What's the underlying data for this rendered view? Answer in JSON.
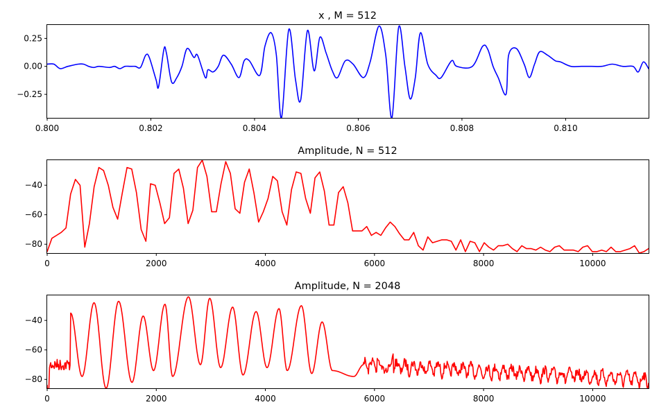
{
  "figure": {
    "background": "#ffffff"
  },
  "chart_data": [
    {
      "type": "line",
      "title": "x , M = 512",
      "xlabel": "",
      "ylabel": "",
      "xlim": [
        0.8,
        0.8116
      ],
      "ylim": [
        -0.46,
        0.37
      ],
      "xticks": [
        0.8,
        0.802,
        0.804,
        0.806,
        0.808,
        0.81
      ],
      "xtick_labels": [
        "0.800",
        "0.802",
        "0.804",
        "0.806",
        "0.808",
        "0.810"
      ],
      "yticks": [
        0.25,
        0.0,
        -0.25
      ],
      "ytick_labels": [
        "0.25",
        "0.00",
        "−0.25"
      ],
      "grid": false,
      "series": [
        {
          "name": "x",
          "color": "#0000ff",
          "x": [
            0.8,
            0.80013,
            0.80025,
            0.8004,
            0.8006,
            0.8007,
            0.8008,
            0.8009,
            0.801,
            0.8012,
            0.8013,
            0.8014,
            0.8015,
            0.8016,
            0.8017,
            0.8018,
            0.8019,
            0.80197,
            0.8021,
            0.80215,
            0.80225,
            0.8023,
            0.8024,
            0.8025,
            0.8026,
            0.8027,
            0.80283,
            0.8029,
            0.80305,
            0.8031,
            0.8032,
            0.8033,
            0.8034,
            0.80355,
            0.8037,
            0.8038,
            0.8039,
            0.8041,
            0.8042,
            0.80432,
            0.80442,
            0.80452,
            0.80466,
            0.80479,
            0.80489,
            0.80502,
            0.80515,
            0.80526,
            0.80538,
            0.8055,
            0.8056,
            0.80575,
            0.8059,
            0.8061,
            0.80623,
            0.8064,
            0.80653,
            0.80665,
            0.80678,
            0.8069,
            0.807,
            0.8071,
            0.8072,
            0.80734,
            0.8075,
            0.8076,
            0.8078,
            0.8079,
            0.8082,
            0.8084,
            0.8085,
            0.8086,
            0.8087,
            0.80885,
            0.8089,
            0.80905,
            0.8092,
            0.8093,
            0.8094,
            0.8095,
            0.80965,
            0.8098,
            0.8099,
            0.8101,
            0.8103,
            0.8105,
            0.8107,
            0.8109,
            0.8111,
            0.8113,
            0.8114,
            0.8115,
            0.8116
          ],
          "y": [
            0.02,
            0.02,
            -0.02,
            0.0,
            0.02,
            0.02,
            0.0,
            -0.01,
            0.0,
            -0.01,
            0.0,
            -0.02,
            0.0,
            0.0,
            0.0,
            -0.01,
            0.1,
            0.08,
            -0.12,
            -0.18,
            0.15,
            0.12,
            -0.14,
            -0.1,
            0.0,
            0.16,
            0.08,
            0.1,
            -0.1,
            -0.03,
            -0.05,
            0.0,
            0.1,
            0.02,
            -0.1,
            0.05,
            0.05,
            -0.08,
            0.18,
            0.3,
            0.1,
            -0.46,
            0.33,
            -0.12,
            -0.3,
            0.32,
            -0.04,
            0.26,
            0.12,
            -0.04,
            -0.1,
            0.05,
            0.02,
            -0.1,
            0.04,
            0.36,
            0.1,
            -0.46,
            0.35,
            0.0,
            -0.29,
            -0.1,
            0.3,
            0.02,
            -0.08,
            -0.1,
            0.05,
            0.0,
            0.0,
            0.18,
            0.15,
            0.0,
            -0.1,
            -0.25,
            0.1,
            0.16,
            0.02,
            -0.1,
            0.02,
            0.13,
            0.1,
            0.05,
            0.04,
            0.0,
            0.0,
            0.0,
            0.0,
            0.02,
            0.0,
            0.0,
            -0.05,
            0.04,
            -0.02
          ]
        }
      ]
    },
    {
      "type": "line",
      "title": "Amplitude, N = 512",
      "xlabel": "",
      "ylabel": "",
      "xlim": [
        0,
        11025
      ],
      "ylim": [
        -86,
        -23
      ],
      "xticks": [
        0,
        2000,
        4000,
        6000,
        8000,
        10000
      ],
      "xtick_labels": [
        "0",
        "2000",
        "4000",
        "6000",
        "8000",
        "10000"
      ],
      "yticks": [
        -40,
        -60,
        -80
      ],
      "ytick_labels": [
        "−40",
        "−60",
        "−80"
      ],
      "grid": false,
      "series": [
        {
          "name": "amplitude",
          "color": "#ff0000",
          "x": [
            0,
            86,
            172,
            258,
            344,
            430,
            517,
            603,
            689,
            775,
            861,
            947,
            1034,
            1120,
            1206,
            1292,
            1378,
            1464,
            1550,
            1637,
            1723,
            1809,
            1895,
            1981,
            2067,
            2153,
            2240,
            2326,
            2412,
            2498,
            2584,
            2670,
            2756,
            2843,
            2929,
            3015,
            3101,
            3187,
            3273,
            3359,
            3446,
            3532,
            3618,
            3704,
            3790,
            3876,
            3962,
            4049,
            4135,
            4221,
            4307,
            4393,
            4479,
            4565,
            4652,
            4738,
            4824,
            4910,
            4996,
            5082,
            5168,
            5255,
            5341,
            5427,
            5513,
            5599,
            5685,
            5771,
            5858,
            5944,
            6030,
            6116,
            6202,
            6288,
            6374,
            6461,
            6547,
            6633,
            6719,
            6805,
            6891,
            6977,
            7064,
            7150,
            7236,
            7322,
            7408,
            7494,
            7580,
            7667,
            7753,
            7839,
            7925,
            8011,
            8097,
            8183,
            8270,
            8356,
            8442,
            8528,
            8614,
            8700,
            8786,
            8873,
            8959,
            9045,
            9131,
            9217,
            9303,
            9389,
            9476,
            9562,
            9648,
            9734,
            9820,
            9906,
            9992,
            10079,
            10165,
            10251,
            10337,
            10423,
            10509,
            10595,
            10682,
            10768,
            10854,
            10940,
            11025
          ],
          "y": [
            -85,
            -76,
            -74,
            -72,
            -69,
            -46,
            -36,
            -40,
            -82,
            -66,
            -41,
            -28,
            -30,
            -40,
            -55,
            -63,
            -45,
            -28,
            -29,
            -45,
            -70,
            -78,
            -39,
            -40,
            -52,
            -66,
            -62,
            -32,
            -29,
            -42,
            -66,
            -57,
            -28,
            -23,
            -34,
            -58,
            -58,
            -39,
            -24,
            -32,
            -56,
            -59,
            -38,
            -29,
            -45,
            -65,
            -58,
            -49,
            -34,
            -37,
            -58,
            -67,
            -43,
            -31,
            -32,
            -49,
            -59,
            -35,
            -31,
            -44,
            -67,
            -67,
            -45,
            -41,
            -52,
            -71,
            -71,
            -71,
            -68,
            -74,
            -72,
            -74,
            -69,
            -65,
            -68,
            -73,
            -77,
            -77,
            -72,
            -81,
            -84,
            -75,
            -79,
            -78,
            -77,
            -77,
            -78,
            -84,
            -77,
            -85,
            -78,
            -79,
            -85,
            -79,
            -82,
            -84,
            -81,
            -81,
            -80,
            -83,
            -85,
            -81,
            -83,
            -83,
            -84,
            -82,
            -84,
            -85,
            -82,
            -81,
            -84,
            -84,
            -84,
            -85,
            -82,
            -81,
            -85,
            -85,
            -84,
            -85,
            -82,
            -85,
            -85,
            -84,
            -83,
            -81,
            -86,
            -85,
            -83
          ],
          "y_note": ""
        }
      ]
    },
    {
      "type": "line",
      "title": "Amplitude, N = 2048",
      "xlabel": "",
      "ylabel": "",
      "xlim": [
        0,
        11025
      ],
      "ylim": [
        -86,
        -23
      ],
      "xticks": [
        0,
        2000,
        4000,
        6000,
        8000,
        10000
      ],
      "xtick_labels": [
        "0",
        "2000",
        "4000",
        "6000",
        "8000",
        "10000"
      ],
      "yticks": [
        -40,
        -60,
        -80
      ],
      "ytick_labels": [
        "−40",
        "−60",
        "−80"
      ],
      "grid": false,
      "series": [
        {
          "name": "amplitude",
          "color": "#ff0000",
          "peaks": [
            [
              430,
              -35
            ],
            [
              860,
              -28
            ],
            [
              1310,
              -27
            ],
            [
              1760,
              -37
            ],
            [
              2160,
              -29
            ],
            [
              2590,
              -24
            ],
            [
              2980,
              -25
            ],
            [
              3400,
              -31
            ],
            [
              3830,
              -34
            ],
            [
              4250,
              -32
            ],
            [
              4660,
              -30
            ],
            [
              5040,
              -41
            ]
          ],
          "nulls": [
            [
              640,
              -78
            ],
            [
              1080,
              -86
            ],
            [
              1555,
              -82
            ],
            [
              1950,
              -74
            ],
            [
              2300,
              -78
            ],
            [
              2810,
              -70
            ],
            [
              3180,
              -72
            ],
            [
              3590,
              -77
            ],
            [
              4030,
              -72
            ],
            [
              4400,
              -74
            ],
            [
              4850,
              -76
            ],
            [
              5230,
              -74
            ],
            [
              5620,
              -78
            ]
          ],
          "high_freq_floor": [
            -76,
            -86
          ]
        }
      ]
    }
  ]
}
